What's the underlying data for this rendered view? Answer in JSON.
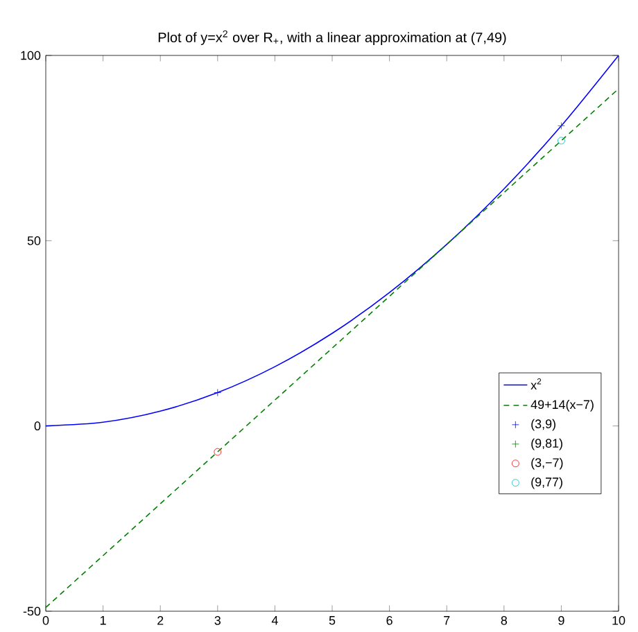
{
  "chart_data": {
    "type": "line",
    "title": "Plot of y=x$^{2}$ over R$_{+}$, with a linear approximation at (7,49)",
    "xlim": [
      0,
      10
    ],
    "ylim": [
      -50,
      100
    ],
    "xticks": [
      0,
      1,
      2,
      3,
      4,
      5,
      6,
      7,
      8,
      9,
      10
    ],
    "yticks": [
      -50,
      0,
      50,
      100
    ],
    "legend": "right",
    "grid": false,
    "series": [
      {
        "name": "x$^{2}$",
        "color": "#0000ff",
        "line_style": "solid",
        "marker": "none",
        "x": [
          0,
          1,
          2,
          3,
          4,
          5,
          6,
          7,
          8,
          9,
          10
        ],
        "values": [
          0,
          1,
          4,
          9,
          16,
          25,
          36,
          49,
          64,
          81,
          100
        ]
      },
      {
        "name": "49+14(x−7)",
        "color": "#008000",
        "line_style": "dashed",
        "marker": "none",
        "x": [
          0,
          10
        ],
        "values": [
          -49,
          91
        ]
      },
      {
        "name": "(3,9)",
        "type": "scatter",
        "color": "#0000ff",
        "marker": "cross",
        "x": [
          3
        ],
        "values": [
          9
        ]
      },
      {
        "name": "(9,81)",
        "type": "scatter",
        "color": "#008000",
        "marker": "cross",
        "x": [
          9
        ],
        "values": [
          81
        ]
      },
      {
        "name": "(3,−7)",
        "type": "scatter",
        "color": "#ff0000",
        "marker": "circle",
        "x": [
          3
        ],
        "values": [
          -7
        ]
      },
      {
        "name": "(9,77)",
        "type": "scatter",
        "color": "#00bfbf",
        "marker": "circle",
        "x": [
          9
        ],
        "values": [
          77
        ]
      }
    ]
  }
}
